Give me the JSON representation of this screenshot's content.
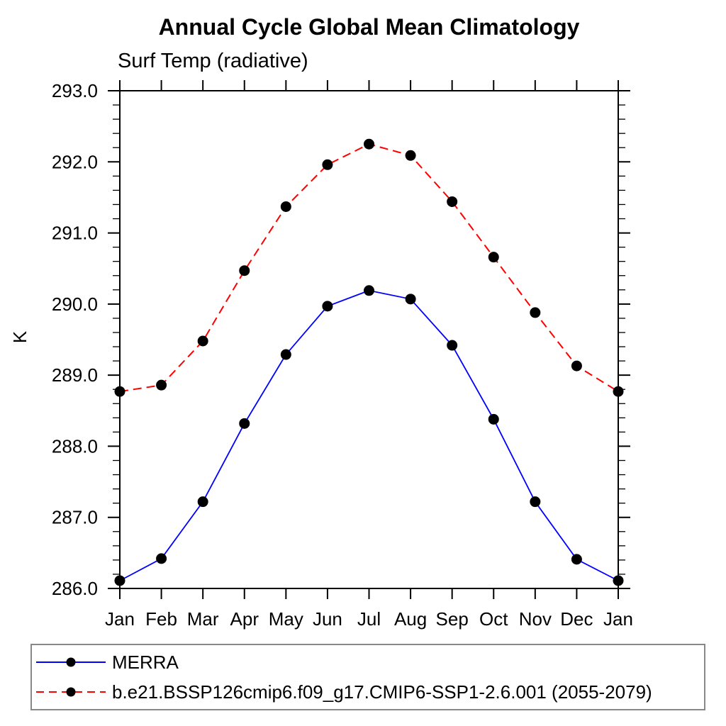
{
  "chart_data": {
    "type": "line",
    "title": "Annual Cycle Global Mean Climatology",
    "subtitle": "Surf Temp (radiative)",
    "ylabel": "K",
    "categories": [
      "Jan",
      "Feb",
      "Mar",
      "Apr",
      "May",
      "Jun",
      "Jul",
      "Aug",
      "Sep",
      "Oct",
      "Nov",
      "Dec",
      "Jan"
    ],
    "ylim": [
      286.0,
      293.0
    ],
    "y_major_step": 1.0,
    "y_minor_step": 0.2,
    "grid": false,
    "axis_color": "#000000",
    "marker": "filled-circle",
    "marker_color": "#000000",
    "legend_position": "bottom-box",
    "series": [
      {
        "name": "MERRA",
        "color": "#0000ff",
        "line_style": "solid",
        "values": [
          286.11,
          286.42,
          287.22,
          288.32,
          289.29,
          289.97,
          290.19,
          290.07,
          289.42,
          288.38,
          287.22,
          286.41,
          286.11
        ]
      },
      {
        "name": "b.e21.BSSP126cmip6.f09_g17.CMIP6-SSP1-2.6.001 (2055-2079)",
        "color": "#ff0000",
        "line_style": "dashed",
        "values": [
          288.77,
          288.86,
          289.48,
          290.47,
          291.37,
          291.96,
          292.25,
          292.09,
          291.44,
          290.66,
          289.88,
          289.13,
          288.77
        ]
      }
    ]
  }
}
